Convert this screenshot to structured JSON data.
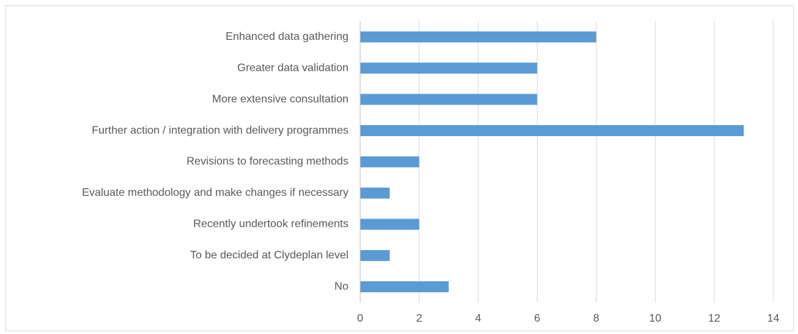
{
  "chart_data": {
    "type": "bar",
    "orientation": "horizontal",
    "categories": [
      "Enhanced data gathering",
      "Greater data validation",
      "More extensive consultation",
      "Further action / integration with delivery programmes",
      "Revisions to forecasting methods",
      "Evaluate methodology and make changes if necessary",
      "Recently undertook refinements",
      "To be decided at Clydeplan level",
      "No"
    ],
    "values": [
      8,
      6,
      6,
      13,
      2,
      1,
      2,
      1,
      3
    ],
    "color": "#5b9bd5",
    "xlim": [
      0,
      14
    ],
    "xticks": [
      0,
      2,
      4,
      6,
      8,
      10,
      12,
      14
    ],
    "grid": true
  }
}
